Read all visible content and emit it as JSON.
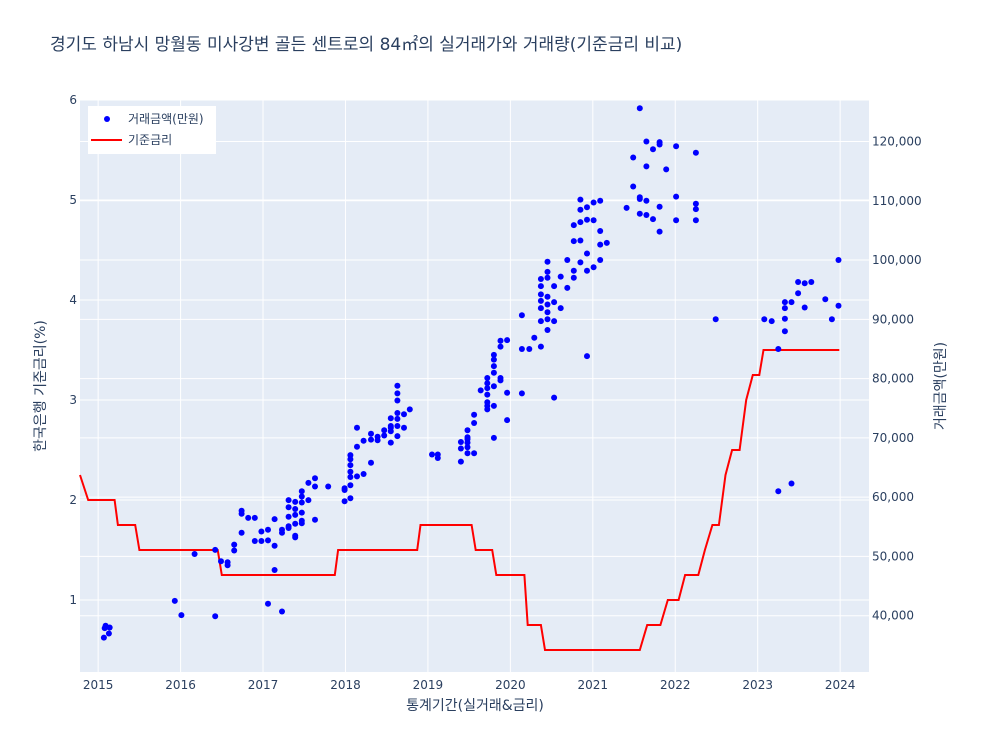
{
  "chart_data": {
    "type": "scatter",
    "title": "경기도 하남시 망월동 미사강변 골든 센트로의 84㎡의 실거래가와 거래량(기준금리 비교)",
    "xlabel": "통계기간(실거래&금리)",
    "ylabel_left": "한국은행 기준금리(%)",
    "ylabel_right": "거래금액(만원)",
    "x_range": [
      2014.78,
      2024.35
    ],
    "ylim_left": [
      0.28,
      6.0
    ],
    "ylim_right": [
      30500,
      127000
    ],
    "x_ticks": [
      "2015",
      "2016",
      "2017",
      "2018",
      "2019",
      "2020",
      "2021",
      "2022",
      "2023",
      "2024"
    ],
    "y_left_ticks": [
      "1",
      "2",
      "3",
      "4",
      "5",
      "6"
    ],
    "y_right_ticks": [
      "40,000",
      "50,000",
      "60,000",
      "70,000",
      "80,000",
      "90,000",
      "100,000",
      "110,000",
      "120,000"
    ],
    "legend_position": "top-left",
    "grid": true,
    "colors": {
      "background": "#e5ecf6",
      "grid": "#ffffff",
      "scatter": "#0000ff",
      "line": "#ff0000",
      "text": "#2a3f5f"
    },
    "series": [
      {
        "name": "거래금액(만원)",
        "axis": "right",
        "mode": "markers",
        "points": [
          [
            2015.07,
            36300
          ],
          [
            2015.08,
            37900
          ],
          [
            2015.09,
            38300
          ],
          [
            2015.13,
            37000
          ],
          [
            2015.14,
            38000
          ],
          [
            2015.93,
            42500
          ],
          [
            2016.01,
            40100
          ],
          [
            2016.17,
            50400
          ],
          [
            2016.42,
            39900
          ],
          [
            2016.42,
            51100
          ],
          [
            2016.49,
            49200
          ],
          [
            2016.57,
            48500
          ],
          [
            2016.57,
            49000
          ],
          [
            2016.65,
            51000
          ],
          [
            2016.65,
            52000
          ],
          [
            2016.74,
            57700
          ],
          [
            2016.74,
            57200
          ],
          [
            2016.74,
            54000
          ],
          [
            2016.82,
            56500
          ],
          [
            2016.9,
            56500
          ],
          [
            2016.9,
            52600
          ],
          [
            2016.98,
            54200
          ],
          [
            2016.98,
            52600
          ],
          [
            2017.06,
            42000
          ],
          [
            2017.06,
            54500
          ],
          [
            2017.06,
            52700
          ],
          [
            2017.14,
            47700
          ],
          [
            2017.14,
            51800
          ],
          [
            2017.14,
            56300
          ],
          [
            2017.23,
            40700
          ],
          [
            2017.23,
            54500
          ],
          [
            2017.23,
            54000
          ],
          [
            2017.31,
            55100
          ],
          [
            2017.31,
            56700
          ],
          [
            2017.31,
            58300
          ],
          [
            2017.31,
            59500
          ],
          [
            2017.31,
            54800
          ],
          [
            2017.39,
            53200
          ],
          [
            2017.39,
            57000
          ],
          [
            2017.39,
            58000
          ],
          [
            2017.39,
            59200
          ],
          [
            2017.39,
            55500
          ],
          [
            2017.39,
            53500
          ],
          [
            2017.47,
            56000
          ],
          [
            2017.47,
            57400
          ],
          [
            2017.47,
            59100
          ],
          [
            2017.47,
            60100
          ],
          [
            2017.47,
            61000
          ],
          [
            2017.47,
            55600
          ],
          [
            2017.55,
            59500
          ],
          [
            2017.55,
            62400
          ],
          [
            2017.63,
            56200
          ],
          [
            2017.63,
            61800
          ],
          [
            2017.63,
            63200
          ],
          [
            2017.79,
            61800
          ],
          [
            2017.99,
            59300
          ],
          [
            2017.99,
            61200
          ],
          [
            2017.99,
            61500
          ],
          [
            2018.06,
            59800
          ],
          [
            2018.06,
            62000
          ],
          [
            2018.06,
            63400
          ],
          [
            2018.06,
            64300
          ],
          [
            2018.06,
            65400
          ],
          [
            2018.06,
            66400
          ],
          [
            2018.06,
            67100
          ],
          [
            2018.14,
            63500
          ],
          [
            2018.14,
            68500
          ],
          [
            2018.14,
            71700
          ],
          [
            2018.22,
            63900
          ],
          [
            2018.22,
            69500
          ],
          [
            2018.31,
            65800
          ],
          [
            2018.31,
            69700
          ],
          [
            2018.31,
            70700
          ],
          [
            2018.39,
            69600
          ],
          [
            2018.39,
            70200
          ],
          [
            2018.47,
            70400
          ],
          [
            2018.47,
            71300
          ],
          [
            2018.55,
            69200
          ],
          [
            2018.55,
            71100
          ],
          [
            2018.55,
            71700
          ],
          [
            2018.55,
            72000
          ],
          [
            2018.55,
            73300
          ],
          [
            2018.63,
            70300
          ],
          [
            2018.63,
            72000
          ],
          [
            2018.63,
            73200
          ],
          [
            2018.63,
            74200
          ],
          [
            2018.63,
            76300
          ],
          [
            2018.63,
            77500
          ],
          [
            2018.63,
            78800
          ],
          [
            2018.71,
            71700
          ],
          [
            2018.71,
            74000
          ],
          [
            2018.78,
            74800
          ],
          [
            2019.05,
            67200
          ],
          [
            2019.12,
            66600
          ],
          [
            2019.12,
            67200
          ],
          [
            2019.4,
            66000
          ],
          [
            2019.4,
            68200
          ],
          [
            2019.4,
            69300
          ],
          [
            2019.48,
            67400
          ],
          [
            2019.48,
            68400
          ],
          [
            2019.48,
            69200
          ],
          [
            2019.48,
            69800
          ],
          [
            2019.48,
            70100
          ],
          [
            2019.48,
            71300
          ],
          [
            2019.56,
            67400
          ],
          [
            2019.56,
            72500
          ],
          [
            2019.56,
            73900
          ],
          [
            2019.64,
            78000
          ],
          [
            2019.72,
            74800
          ],
          [
            2019.72,
            76000
          ],
          [
            2019.72,
            77300
          ],
          [
            2019.72,
            78400
          ],
          [
            2019.72,
            79200
          ],
          [
            2019.72,
            80100
          ],
          [
            2019.72,
            75400
          ],
          [
            2019.8,
            75400
          ],
          [
            2019.8,
            78700
          ],
          [
            2019.8,
            81000
          ],
          [
            2019.8,
            82100
          ],
          [
            2019.8,
            83200
          ],
          [
            2019.8,
            84000
          ],
          [
            2019.8,
            70000
          ],
          [
            2019.88,
            80100
          ],
          [
            2019.88,
            85400
          ],
          [
            2019.88,
            79700
          ],
          [
            2019.88,
            86400
          ],
          [
            2019.96,
            73000
          ],
          [
            2019.96,
            77600
          ],
          [
            2019.96,
            86500
          ],
          [
            2020.14,
            77500
          ],
          [
            2020.14,
            85000
          ],
          [
            2020.14,
            90700
          ],
          [
            2020.23,
            85000
          ],
          [
            2020.29,
            86900
          ],
          [
            2020.37,
            85400
          ],
          [
            2020.37,
            89700
          ],
          [
            2020.37,
            91900
          ],
          [
            2020.37,
            93100
          ],
          [
            2020.37,
            94200
          ],
          [
            2020.37,
            95600
          ],
          [
            2020.37,
            96800
          ],
          [
            2020.45,
            88200
          ],
          [
            2020.45,
            90000
          ],
          [
            2020.45,
            91200
          ],
          [
            2020.45,
            92500
          ],
          [
            2020.45,
            93800
          ],
          [
            2020.45,
            97000
          ],
          [
            2020.45,
            98000
          ],
          [
            2020.45,
            99700
          ],
          [
            2020.53,
            89700
          ],
          [
            2020.53,
            92900
          ],
          [
            2020.53,
            95600
          ],
          [
            2020.53,
            76800
          ],
          [
            2020.61,
            91900
          ],
          [
            2020.61,
            97200
          ],
          [
            2020.69,
            95300
          ],
          [
            2020.69,
            100000
          ],
          [
            2020.77,
            97000
          ],
          [
            2020.77,
            98200
          ],
          [
            2020.77,
            103200
          ],
          [
            2020.77,
            105900
          ],
          [
            2020.85,
            99600
          ],
          [
            2020.85,
            103300
          ],
          [
            2020.85,
            106400
          ],
          [
            2020.85,
            108500
          ],
          [
            2020.85,
            110200
          ],
          [
            2020.93,
            83800
          ],
          [
            2020.93,
            98200
          ],
          [
            2020.93,
            101100
          ],
          [
            2020.93,
            106800
          ],
          [
            2020.93,
            108900
          ],
          [
            2021.01,
            98800
          ],
          [
            2021.01,
            106700
          ],
          [
            2021.01,
            109700
          ],
          [
            2021.09,
            100000
          ],
          [
            2021.09,
            102600
          ],
          [
            2021.09,
            104900
          ],
          [
            2021.09,
            110000
          ],
          [
            2021.17,
            102900
          ],
          [
            2021.41,
            108800
          ],
          [
            2021.49,
            117300
          ],
          [
            2021.49,
            112400
          ],
          [
            2021.57,
            107800
          ],
          [
            2021.57,
            110300
          ],
          [
            2021.57,
            110600
          ],
          [
            2021.57,
            125600
          ],
          [
            2021.65,
            115800
          ],
          [
            2021.65,
            120000
          ],
          [
            2021.65,
            107600
          ],
          [
            2021.65,
            110000
          ],
          [
            2021.73,
            106900
          ],
          [
            2021.73,
            118700
          ],
          [
            2021.81,
            104800
          ],
          [
            2021.81,
            109000
          ],
          [
            2021.81,
            119500
          ],
          [
            2021.81,
            119900
          ],
          [
            2021.89,
            115300
          ],
          [
            2022.01,
            119200
          ],
          [
            2022.01,
            106700
          ],
          [
            2022.01,
            110700
          ],
          [
            2022.25,
            118100
          ],
          [
            2022.25,
            106700
          ],
          [
            2022.25,
            108600
          ],
          [
            2022.25,
            109500
          ],
          [
            2022.49,
            90000
          ],
          [
            2023.08,
            90000
          ],
          [
            2023.17,
            89700
          ],
          [
            2023.25,
            61000
          ],
          [
            2023.25,
            85000
          ],
          [
            2023.33,
            88000
          ],
          [
            2023.33,
            90100
          ],
          [
            2023.33,
            91900
          ],
          [
            2023.33,
            92900
          ],
          [
            2023.41,
            62300
          ],
          [
            2023.41,
            92900
          ],
          [
            2023.49,
            94400
          ],
          [
            2023.49,
            96300
          ],
          [
            2023.57,
            92000
          ],
          [
            2023.57,
            96100
          ],
          [
            2023.65,
            96300
          ],
          [
            2023.82,
            93400
          ],
          [
            2023.9,
            90000
          ],
          [
            2023.98,
            92300
          ],
          [
            2023.98,
            100000
          ]
        ]
      },
      {
        "name": "기준금리",
        "axis": "left",
        "mode": "lines",
        "points": [
          [
            2014.78,
            2.25
          ],
          [
            2014.88,
            2.0
          ],
          [
            2015.2,
            2.0
          ],
          [
            2015.24,
            1.75
          ],
          [
            2015.45,
            1.75
          ],
          [
            2015.5,
            1.5
          ],
          [
            2016.45,
            1.5
          ],
          [
            2016.5,
            1.25
          ],
          [
            2017.87,
            1.25
          ],
          [
            2017.91,
            1.5
          ],
          [
            2018.87,
            1.5
          ],
          [
            2018.91,
            1.75
          ],
          [
            2019.53,
            1.75
          ],
          [
            2019.58,
            1.5
          ],
          [
            2019.78,
            1.5
          ],
          [
            2019.83,
            1.25
          ],
          [
            2020.17,
            1.25
          ],
          [
            2020.21,
            0.75
          ],
          [
            2020.37,
            0.75
          ],
          [
            2020.42,
            0.5
          ],
          [
            2021.57,
            0.5
          ],
          [
            2021.66,
            0.75
          ],
          [
            2021.82,
            0.75
          ],
          [
            2021.91,
            1.0
          ],
          [
            2022.04,
            1.0
          ],
          [
            2022.12,
            1.25
          ],
          [
            2022.28,
            1.25
          ],
          [
            2022.36,
            1.5
          ],
          [
            2022.45,
            1.75
          ],
          [
            2022.53,
            1.75
          ],
          [
            2022.61,
            2.25
          ],
          [
            2022.69,
            2.5
          ],
          [
            2022.78,
            2.5
          ],
          [
            2022.86,
            3.0
          ],
          [
            2022.94,
            3.25
          ],
          [
            2023.02,
            3.25
          ],
          [
            2023.07,
            3.5
          ],
          [
            2023.99,
            3.5
          ]
        ]
      }
    ]
  }
}
